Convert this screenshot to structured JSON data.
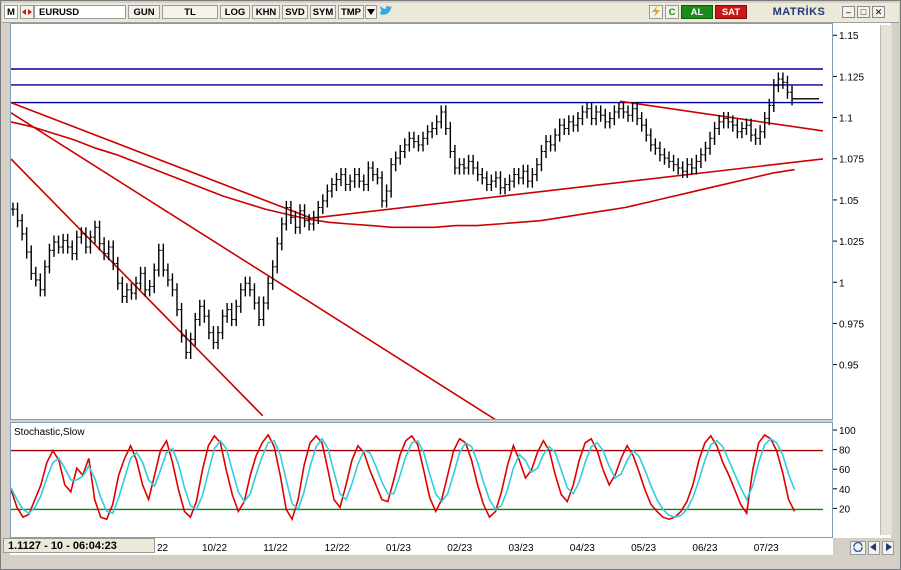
{
  "toolbar": {
    "m_label": "M",
    "symbol": "EURUSD",
    "period": "GUN",
    "currency": "TL",
    "buttons": [
      "LOG",
      "KHN",
      "SVD",
      "SYM",
      "TMP"
    ],
    "al_label": "AL",
    "sat_label": "SAT",
    "logo": "MATRİKS",
    "c_label": "C"
  },
  "status": {
    "readout": "1.1127 - 10 - 06:04:23"
  },
  "indicator": {
    "title": "Stochastic,Slow",
    "upper_level": 80,
    "lower_level": 20
  },
  "colors": {
    "price": "#000000",
    "trendline": "#cc0000",
    "hline": "#000099",
    "stoch_k": "#e00000",
    "stoch_d": "#33ccdd",
    "level_upper": "#990000",
    "level_lower": "#008800"
  },
  "chart_data": [
    {
      "type": "line",
      "title": "",
      "xlabel": "",
      "ylabel": "",
      "ylim": [
        0.92,
        1.155
      ],
      "y_ticks": [
        "1.15",
        "1.125",
        "1.1",
        "1.075",
        "1.05",
        "1.025",
        "1",
        "0.975",
        "0.95"
      ],
      "x_ticks": [
        "22",
        "10/22",
        "11/22",
        "12/22",
        "01/23",
        "02/23",
        "03/23",
        "04/23",
        "05/23",
        "06/23",
        "07/23"
      ],
      "horizontal_levels": [
        1.1301,
        1.1204,
        1.1097
      ],
      "series": [
        {
          "values": [
            1.045,
            1.038,
            1.03,
            1.019,
            1.006,
            1.002,
            0.996,
            1.01,
            1.02,
            1.025,
            1.022,
            1.026,
            1.022,
            1.018,
            1.028,
            1.03,
            1.022,
            1.028,
            1.034,
            1.024,
            1.018,
            1.022,
            1.012,
            1.0,
            0.992,
            0.996,
            0.994,
            1.0,
            1.006,
            0.996,
            0.998,
            1.008,
            1.02,
            1.008,
            1.002,
            0.996,
            0.984,
            0.968,
            0.958,
            0.966,
            0.978,
            0.986,
            0.98,
            0.97,
            0.964,
            0.97,
            0.98,
            0.984,
            0.978,
            0.986,
            0.996,
            1.0,
            0.996,
            0.988,
            0.978,
            0.988,
            1.0,
            1.01,
            1.024,
            1.036,
            1.046,
            1.04,
            1.034,
            1.044,
            1.038,
            1.036,
            1.04,
            1.046,
            1.05,
            1.056,
            1.06,
            1.063,
            1.066,
            1.06,
            1.062,
            1.066,
            1.062,
            1.06,
            1.07,
            1.066,
            1.064,
            1.05,
            1.056,
            1.072,
            1.076,
            1.08,
            1.084,
            1.088,
            1.086,
            1.084,
            1.088,
            1.092,
            1.094,
            1.098,
            1.104,
            1.094,
            1.08,
            1.07,
            1.072,
            1.07,
            1.074,
            1.07,
            1.066,
            1.064,
            1.06,
            1.062,
            1.064,
            1.058,
            1.06,
            1.062,
            1.066,
            1.064,
            1.068,
            1.062,
            1.066,
            1.072,
            1.08,
            1.086,
            1.084,
            1.09,
            1.096,
            1.094,
            1.098,
            1.096,
            1.1,
            1.104,
            1.106,
            1.1,
            1.104,
            1.102,
            1.098,
            1.1,
            1.104,
            1.106,
            1.104,
            1.102,
            1.106,
            1.1,
            1.096,
            1.09,
            1.084,
            1.082,
            1.078,
            1.076,
            1.074,
            1.072,
            1.07,
            1.068,
            1.072,
            1.07,
            1.074,
            1.078,
            1.082,
            1.088,
            1.094,
            1.098,
            1.1,
            1.098,
            1.096,
            1.092,
            1.094,
            1.096,
            1.09,
            1.088,
            1.092,
            1.1,
            1.108,
            1.12,
            1.124,
            1.122,
            1.116,
            1.112
          ]
        }
      ],
      "moving_average": [
        1.098,
        1.095,
        1.091,
        1.087,
        1.082,
        1.078,
        1.073,
        1.068,
        1.063,
        1.058,
        1.053,
        1.049,
        1.045,
        1.042,
        1.039,
        1.037,
        1.036,
        1.035,
        1.034,
        1.034,
        1.034,
        1.035,
        1.035,
        1.036,
        1.037,
        1.038,
        1.04,
        1.042,
        1.044,
        1.046,
        1.049,
        1.052,
        1.055,
        1.058,
        1.061,
        1.064,
        1.067,
        1.069
      ]
    },
    {
      "type": "line",
      "title": "Stochastic,Slow",
      "ylim": [
        0,
        100
      ],
      "y_ticks": [
        "100",
        "80",
        "60",
        "40",
        "20"
      ],
      "series": [
        {
          "values": [
            40,
            22,
            12,
            15,
            30,
            45,
            68,
            80,
            70,
            45,
            38,
            62,
            55,
            72,
            30,
            12,
            10,
            25,
            55,
            72,
            85,
            70,
            45,
            30,
            55,
            80,
            90,
            68,
            40,
            18,
            12,
            28,
            60,
            85,
            95,
            88,
            60,
            35,
            18,
            28,
            55,
            75,
            88,
            96,
            84,
            55,
            20,
            10,
            30,
            65,
            88,
            95,
            88,
            60,
            30,
            22,
            45,
            70,
            85,
            78,
            60,
            45,
            30,
            28,
            50,
            75,
            90,
            95,
            86,
            60,
            32,
            18,
            30,
            55,
            80,
            92,
            88,
            70,
            45,
            25,
            12,
            18,
            38,
            65,
            85,
            70,
            52,
            60,
            78,
            90,
            80,
            55,
            35,
            28,
            45,
            70,
            88,
            92,
            80,
            60,
            45,
            55,
            72,
            85,
            75,
            58,
            40,
            25,
            18,
            12,
            10,
            12,
            18,
            28,
            45,
            70,
            88,
            95,
            85,
            68,
            55,
            40,
            25,
            16,
            60,
            88,
            96,
            92,
            80,
            58,
            30,
            18
          ]
        },
        {
          "values": [
            42,
            30,
            20,
            16,
            22,
            34,
            52,
            68,
            72,
            62,
            50,
            50,
            54,
            64,
            52,
            32,
            18,
            16,
            32,
            52,
            72,
            78,
            68,
            50,
            44,
            60,
            78,
            82,
            66,
            42,
            24,
            20,
            34,
            58,
            82,
            90,
            82,
            60,
            38,
            28,
            36,
            56,
            74,
            88,
            90,
            76,
            50,
            26,
            20,
            38,
            64,
            84,
            92,
            82,
            58,
            36,
            30,
            46,
            66,
            80,
            78,
            64,
            48,
            36,
            36,
            54,
            74,
            88,
            90,
            78,
            56,
            36,
            28,
            36,
            56,
            78,
            88,
            84,
            68,
            48,
            30,
            20,
            24,
            40,
            62,
            76,
            70,
            58,
            62,
            76,
            84,
            78,
            60,
            42,
            36,
            48,
            68,
            84,
            88,
            80,
            64,
            52,
            56,
            70,
            80,
            74,
            60,
            44,
            30,
            20,
            14,
            12,
            14,
            20,
            32,
            50,
            70,
            86,
            90,
            84,
            70,
            56,
            42,
            30,
            44,
            68,
            86,
            92,
            88,
            76,
            56,
            40
          ]
        }
      ]
    }
  ]
}
